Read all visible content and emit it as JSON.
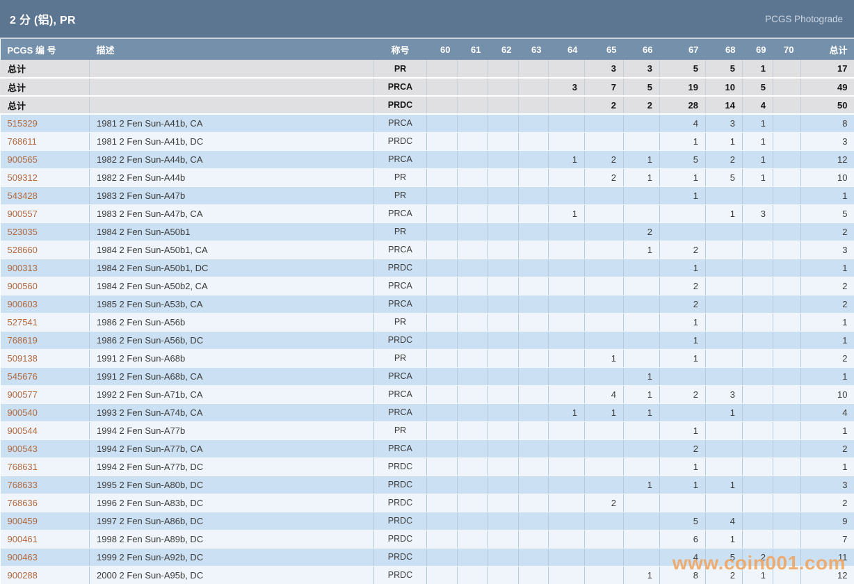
{
  "header": {
    "title": "2 分 (铝), PR",
    "photograde_link": "PCGS Photograde"
  },
  "colors": {
    "titlebar_bg": "#5c7591",
    "column_header_bg": "#7590aa",
    "summary_row_bg": "#e0e0e2",
    "row_blue": "#cbe0f2",
    "row_white": "#eff5fa",
    "pcgs_link": "#b2683f",
    "watermark": "#f0a35c"
  },
  "table": {
    "columns": [
      "PCGS 编 号",
      "描述",
      "称号",
      "60",
      "61",
      "62",
      "63",
      "64",
      "65",
      "66",
      "67",
      "68",
      "69",
      "70",
      "总计"
    ],
    "summary_label": "总计",
    "summary_rows": [
      {
        "designation": "PR",
        "grades": [
          "",
          "",
          "",
          "",
          "",
          "3",
          "3",
          "5",
          "5",
          "1",
          ""
        ],
        "total": "17"
      },
      {
        "designation": "PRCA",
        "grades": [
          "",
          "",
          "",
          "",
          "3",
          "7",
          "5",
          "19",
          "10",
          "5",
          ""
        ],
        "total": "49"
      },
      {
        "designation": "PRDC",
        "grades": [
          "",
          "",
          "",
          "",
          "",
          "2",
          "2",
          "28",
          "14",
          "4",
          ""
        ],
        "total": "50"
      }
    ],
    "rows": [
      {
        "pcgs": "515329",
        "description": "1981 2 Fen Sun-A41b, CA",
        "designation": "PRCA",
        "grades": [
          "",
          "",
          "",
          "",
          "",
          "",
          "",
          "4",
          "3",
          "1",
          ""
        ],
        "total": "8"
      },
      {
        "pcgs": "768611",
        "description": "1981 2 Fen Sun-A41b, DC",
        "designation": "PRDC",
        "grades": [
          "",
          "",
          "",
          "",
          "",
          "",
          "",
          "1",
          "1",
          "1",
          ""
        ],
        "total": "3"
      },
      {
        "pcgs": "900565",
        "description": "1982 2 Fen Sun-A44b, CA",
        "designation": "PRCA",
        "grades": [
          "",
          "",
          "",
          "",
          "1",
          "2",
          "1",
          "5",
          "2",
          "1",
          ""
        ],
        "total": "12"
      },
      {
        "pcgs": "509312",
        "description": "1982 2 Fen Sun-A44b",
        "designation": "PR",
        "grades": [
          "",
          "",
          "",
          "",
          "",
          "2",
          "1",
          "1",
          "5",
          "1",
          ""
        ],
        "total": "10"
      },
      {
        "pcgs": "543428",
        "description": "1983 2 Fen Sun-A47b",
        "designation": "PR",
        "grades": [
          "",
          "",
          "",
          "",
          "",
          "",
          "",
          "1",
          "",
          "",
          ""
        ],
        "total": "1"
      },
      {
        "pcgs": "900557",
        "description": "1983 2 Fen Sun-A47b, CA",
        "designation": "PRCA",
        "grades": [
          "",
          "",
          "",
          "",
          "1",
          "",
          "",
          "",
          "1",
          "3",
          ""
        ],
        "total": "5"
      },
      {
        "pcgs": "523035",
        "description": "1984 2 Fen Sun-A50b1",
        "designation": "PR",
        "grades": [
          "",
          "",
          "",
          "",
          "",
          "",
          "2",
          "",
          "",
          "",
          ""
        ],
        "total": "2"
      },
      {
        "pcgs": "528660",
        "description": "1984 2 Fen Sun-A50b1, CA",
        "designation": "PRCA",
        "grades": [
          "",
          "",
          "",
          "",
          "",
          "",
          "1",
          "2",
          "",
          "",
          ""
        ],
        "total": "3"
      },
      {
        "pcgs": "900313",
        "description": "1984 2 Fen Sun-A50b1, DC",
        "designation": "PRDC",
        "grades": [
          "",
          "",
          "",
          "",
          "",
          "",
          "",
          "1",
          "",
          "",
          ""
        ],
        "total": "1"
      },
      {
        "pcgs": "900560",
        "description": "1984 2 Fen Sun-A50b2, CA",
        "designation": "PRCA",
        "grades": [
          "",
          "",
          "",
          "",
          "",
          "",
          "",
          "2",
          "",
          "",
          ""
        ],
        "total": "2"
      },
      {
        "pcgs": "900603",
        "description": "1985 2 Fen Sun-A53b, CA",
        "designation": "PRCA",
        "grades": [
          "",
          "",
          "",
          "",
          "",
          "",
          "",
          "2",
          "",
          "",
          ""
        ],
        "total": "2"
      },
      {
        "pcgs": "527541",
        "description": "1986 2 Fen Sun-A56b",
        "designation": "PR",
        "grades": [
          "",
          "",
          "",
          "",
          "",
          "",
          "",
          "1",
          "",
          "",
          ""
        ],
        "total": "1"
      },
      {
        "pcgs": "768619",
        "description": "1986 2 Fen Sun-A56b, DC",
        "designation": "PRDC",
        "grades": [
          "",
          "",
          "",
          "",
          "",
          "",
          "",
          "1",
          "",
          "",
          ""
        ],
        "total": "1"
      },
      {
        "pcgs": "509138",
        "description": "1991 2 Fen Sun-A68b",
        "designation": "PR",
        "grades": [
          "",
          "",
          "",
          "",
          "",
          "1",
          "",
          "1",
          "",
          "",
          ""
        ],
        "total": "2"
      },
      {
        "pcgs": "545676",
        "description": "1991 2 Fen Sun-A68b, CA",
        "designation": "PRCA",
        "grades": [
          "",
          "",
          "",
          "",
          "",
          "",
          "1",
          "",
          "",
          "",
          ""
        ],
        "total": "1"
      },
      {
        "pcgs": "900577",
        "description": "1992 2 Fen Sun-A71b, CA",
        "designation": "PRCA",
        "grades": [
          "",
          "",
          "",
          "",
          "",
          "4",
          "1",
          "2",
          "3",
          "",
          ""
        ],
        "total": "10"
      },
      {
        "pcgs": "900540",
        "description": "1993 2 Fen Sun-A74b, CA",
        "designation": "PRCA",
        "grades": [
          "",
          "",
          "",
          "",
          "1",
          "1",
          "1",
          "",
          "1",
          "",
          ""
        ],
        "total": "4"
      },
      {
        "pcgs": "900544",
        "description": "1994 2 Fen Sun-A77b",
        "designation": "PR",
        "grades": [
          "",
          "",
          "",
          "",
          "",
          "",
          "",
          "1",
          "",
          "",
          ""
        ],
        "total": "1"
      },
      {
        "pcgs": "900543",
        "description": "1994 2 Fen Sun-A77b, CA",
        "designation": "PRCA",
        "grades": [
          "",
          "",
          "",
          "",
          "",
          "",
          "",
          "2",
          "",
          "",
          ""
        ],
        "total": "2"
      },
      {
        "pcgs": "768631",
        "description": "1994 2 Fen Sun-A77b, DC",
        "designation": "PRDC",
        "grades": [
          "",
          "",
          "",
          "",
          "",
          "",
          "",
          "1",
          "",
          "",
          ""
        ],
        "total": "1"
      },
      {
        "pcgs": "768633",
        "description": "1995 2 Fen Sun-A80b, DC",
        "designation": "PRDC",
        "grades": [
          "",
          "",
          "",
          "",
          "",
          "",
          "1",
          "1",
          "1",
          "",
          ""
        ],
        "total": "3"
      },
      {
        "pcgs": "768636",
        "description": "1996 2 Fen Sun-A83b, DC",
        "designation": "PRDC",
        "grades": [
          "",
          "",
          "",
          "",
          "",
          "2",
          "",
          "",
          "",
          "",
          ""
        ],
        "total": "2"
      },
      {
        "pcgs": "900459",
        "description": "1997 2 Fen Sun-A86b, DC",
        "designation": "PRDC",
        "grades": [
          "",
          "",
          "",
          "",
          "",
          "",
          "",
          "5",
          "4",
          "",
          ""
        ],
        "total": "9"
      },
      {
        "pcgs": "900461",
        "description": "1998 2 Fen Sun-A89b, DC",
        "designation": "PRDC",
        "grades": [
          "",
          "",
          "",
          "",
          "",
          "",
          "",
          "6",
          "1",
          "",
          ""
        ],
        "total": "7"
      },
      {
        "pcgs": "900463",
        "description": "1999 2 Fen Sun-A92b, DC",
        "designation": "PRDC",
        "grades": [
          "",
          "",
          "",
          "",
          "",
          "",
          "",
          "4",
          "5",
          "2",
          ""
        ],
        "total": "11"
      },
      {
        "pcgs": "900288",
        "description": "2000 2 Fen Sun-A95b, DC",
        "designation": "PRDC",
        "grades": [
          "",
          "",
          "",
          "",
          "",
          "",
          "1",
          "8",
          "2",
          "1",
          ""
        ],
        "total": "12"
      }
    ]
  },
  "watermark": "www.coin001.com"
}
